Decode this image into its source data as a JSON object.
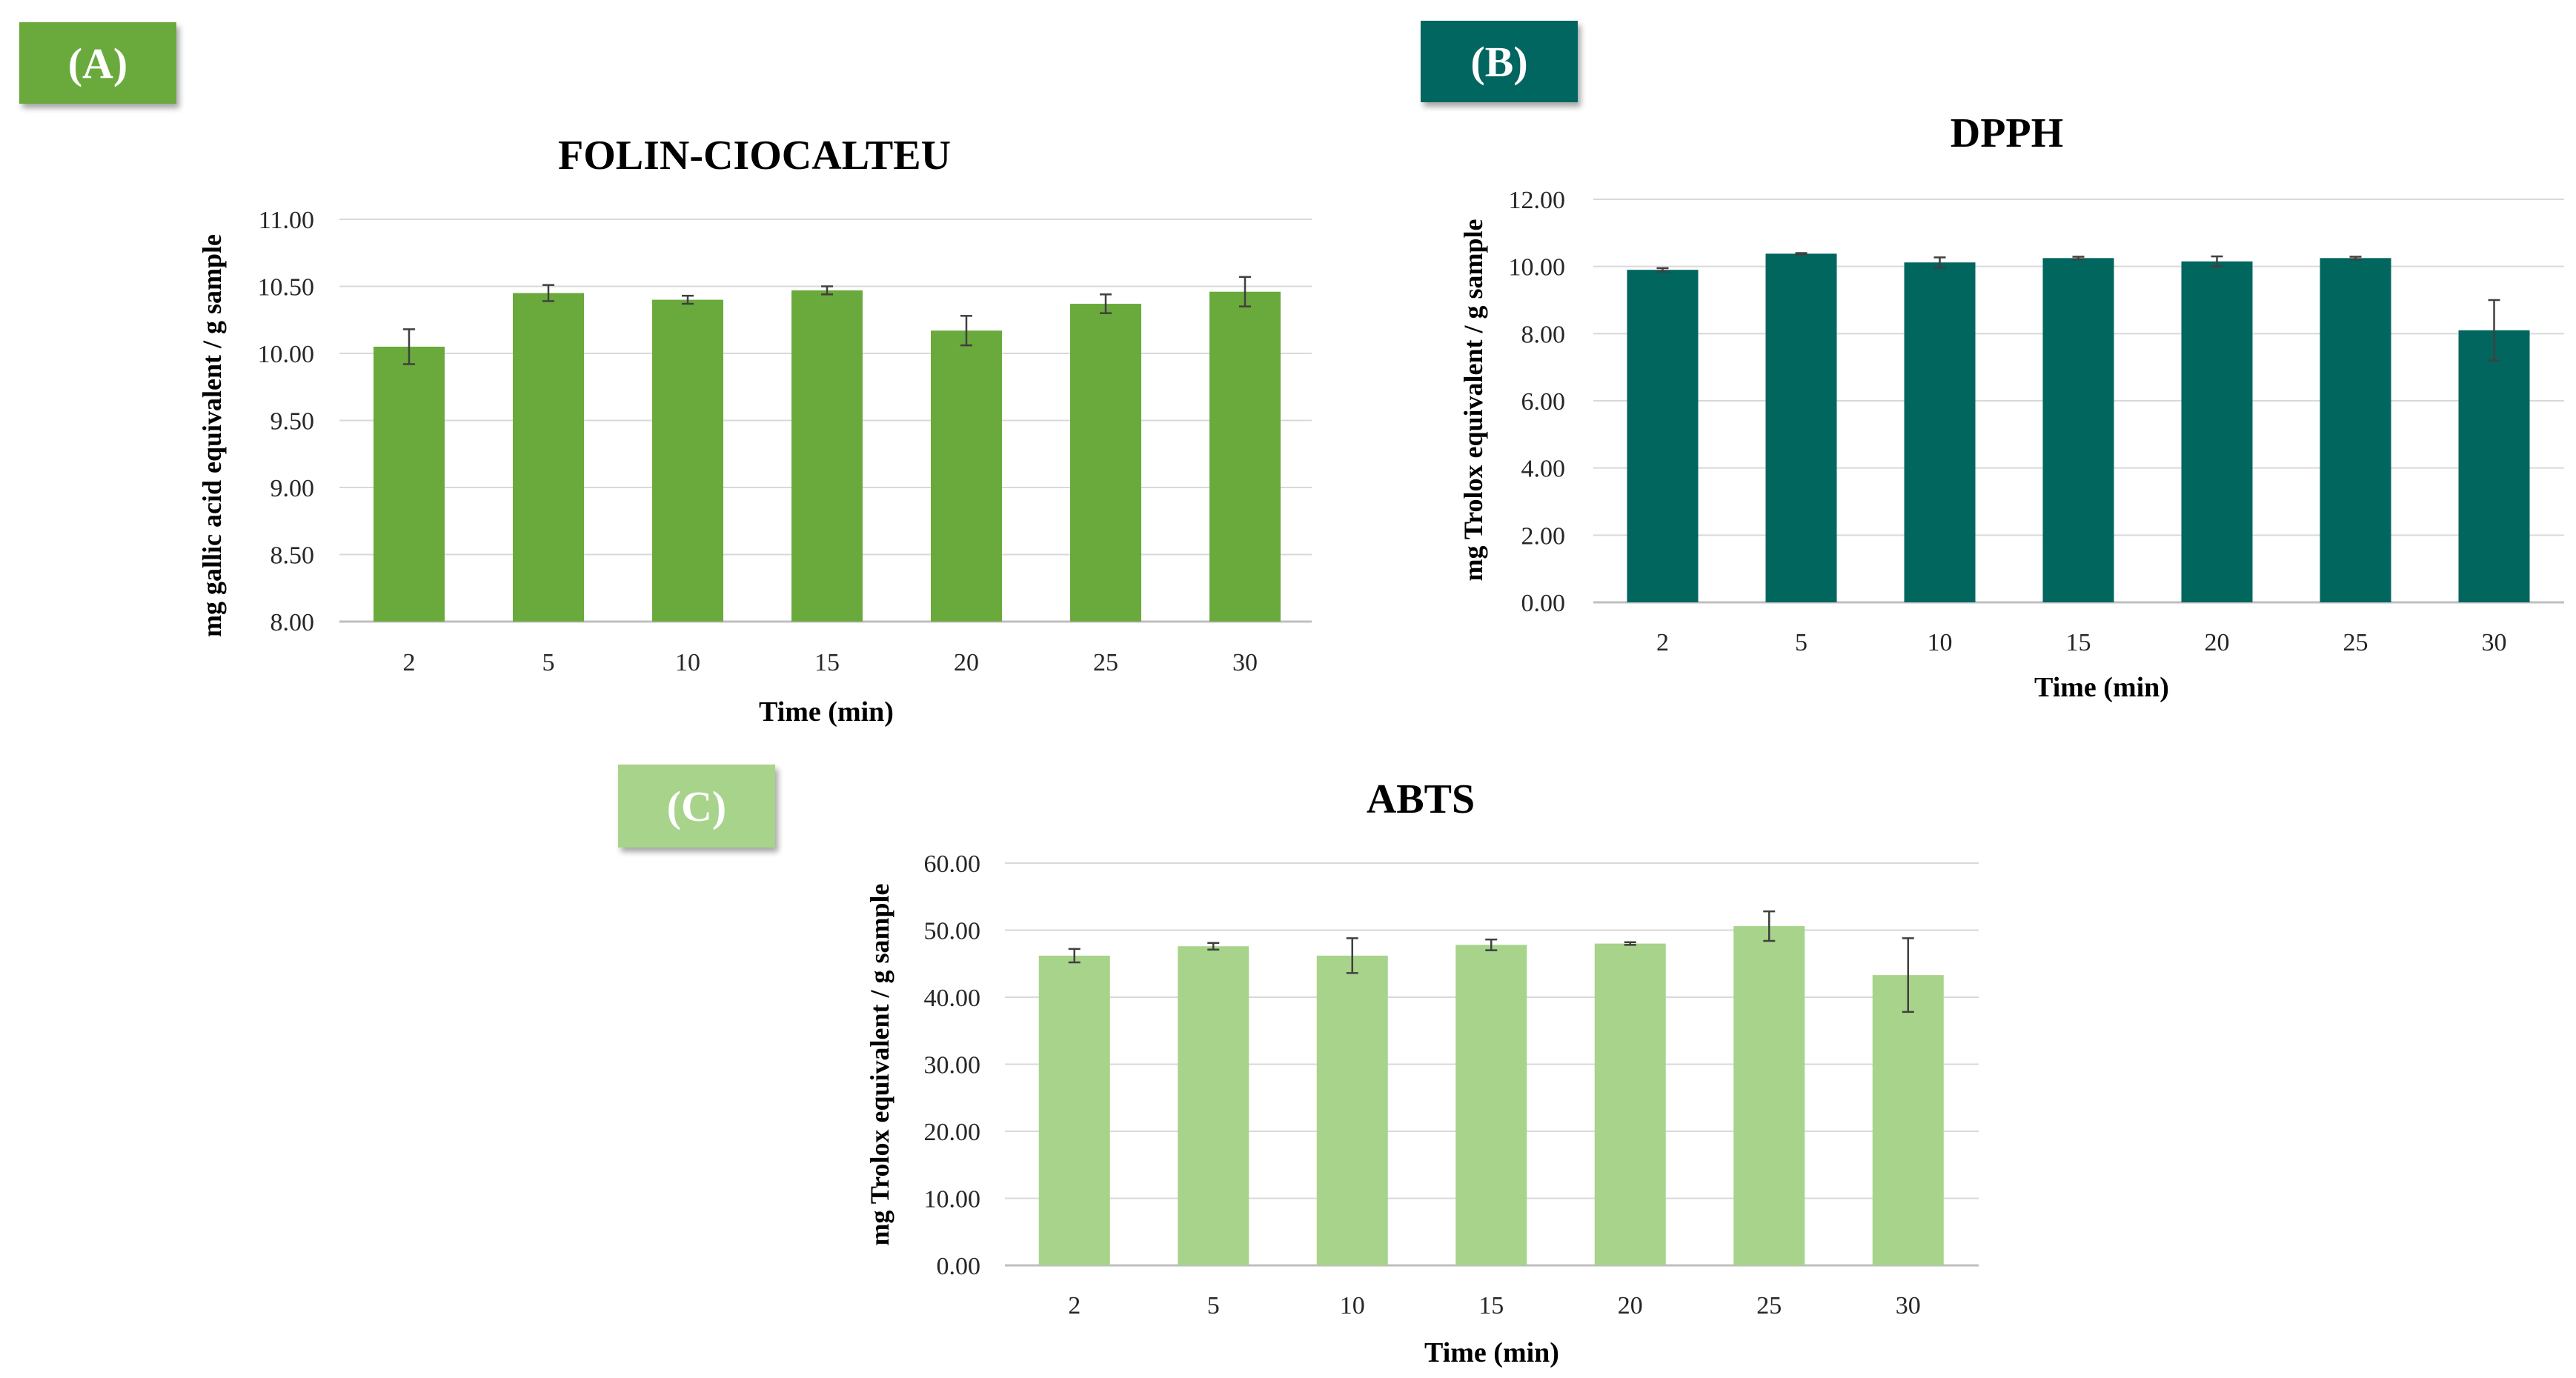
{
  "figure": {
    "panels": [
      {
        "label": "(A)",
        "color": "#6aaa3c"
      },
      {
        "label": "(B)",
        "color": "#00665e"
      },
      {
        "label": "(C)",
        "color": "#a7d38b"
      }
    ]
  },
  "chart_data": [
    {
      "type": "bar",
      "title": "FOLIN-CIOCALTEU",
      "xlabel": "Time (min)",
      "ylabel": "mg gallic acid equivalent / g sample",
      "categories": [
        "2",
        "5",
        "10",
        "15",
        "20",
        "25",
        "30"
      ],
      "values": [
        10.05,
        10.45,
        10.4,
        10.47,
        10.17,
        10.37,
        10.46
      ],
      "errors": [
        0.13,
        0.06,
        0.03,
        0.03,
        0.11,
        0.07,
        0.11
      ],
      "ylim": [
        8.0,
        11.0
      ],
      "yticks": [
        "8.00",
        "8.50",
        "9.00",
        "9.50",
        "10.00",
        "10.50",
        "11.00"
      ],
      "grid": true,
      "bar_color": "#6aaa3c",
      "error_color": "#404040"
    },
    {
      "type": "bar",
      "title": "DPPH",
      "xlabel": "Time (min)",
      "ylabel": "mg Trolox equivalent / g sample",
      "categories": [
        "2",
        "5",
        "10",
        "15",
        "20",
        "25",
        "30"
      ],
      "values": [
        9.9,
        10.38,
        10.12,
        10.25,
        10.15,
        10.25,
        8.1
      ],
      "errors": [
        0.05,
        0.02,
        0.15,
        0.04,
        0.15,
        0.04,
        0.9
      ],
      "ylim": [
        0,
        12
      ],
      "yticks": [
        "0.00",
        "2.00",
        "4.00",
        "6.00",
        "8.00",
        "10.00",
        "12.00"
      ],
      "grid": true,
      "bar_color": "#00665e",
      "error_color": "#404040"
    },
    {
      "type": "bar",
      "title": "ABTS",
      "xlabel": "Time (min)",
      "ylabel": "mg Trolox equivalent / g sample",
      "categories": [
        "2",
        "5",
        "10",
        "15",
        "20",
        "25",
        "30"
      ],
      "values": [
        46.2,
        47.6,
        46.2,
        47.8,
        48.0,
        50.6,
        43.3
      ],
      "errors": [
        1.0,
        0.5,
        2.6,
        0.8,
        0.2,
        2.2,
        5.5
      ],
      "ylim": [
        0,
        60
      ],
      "yticks": [
        "0.00",
        "10.00",
        "20.00",
        "30.00",
        "40.00",
        "50.00",
        "60.00"
      ],
      "grid": true,
      "bar_color": "#a7d38b",
      "error_color": "#404040"
    }
  ]
}
